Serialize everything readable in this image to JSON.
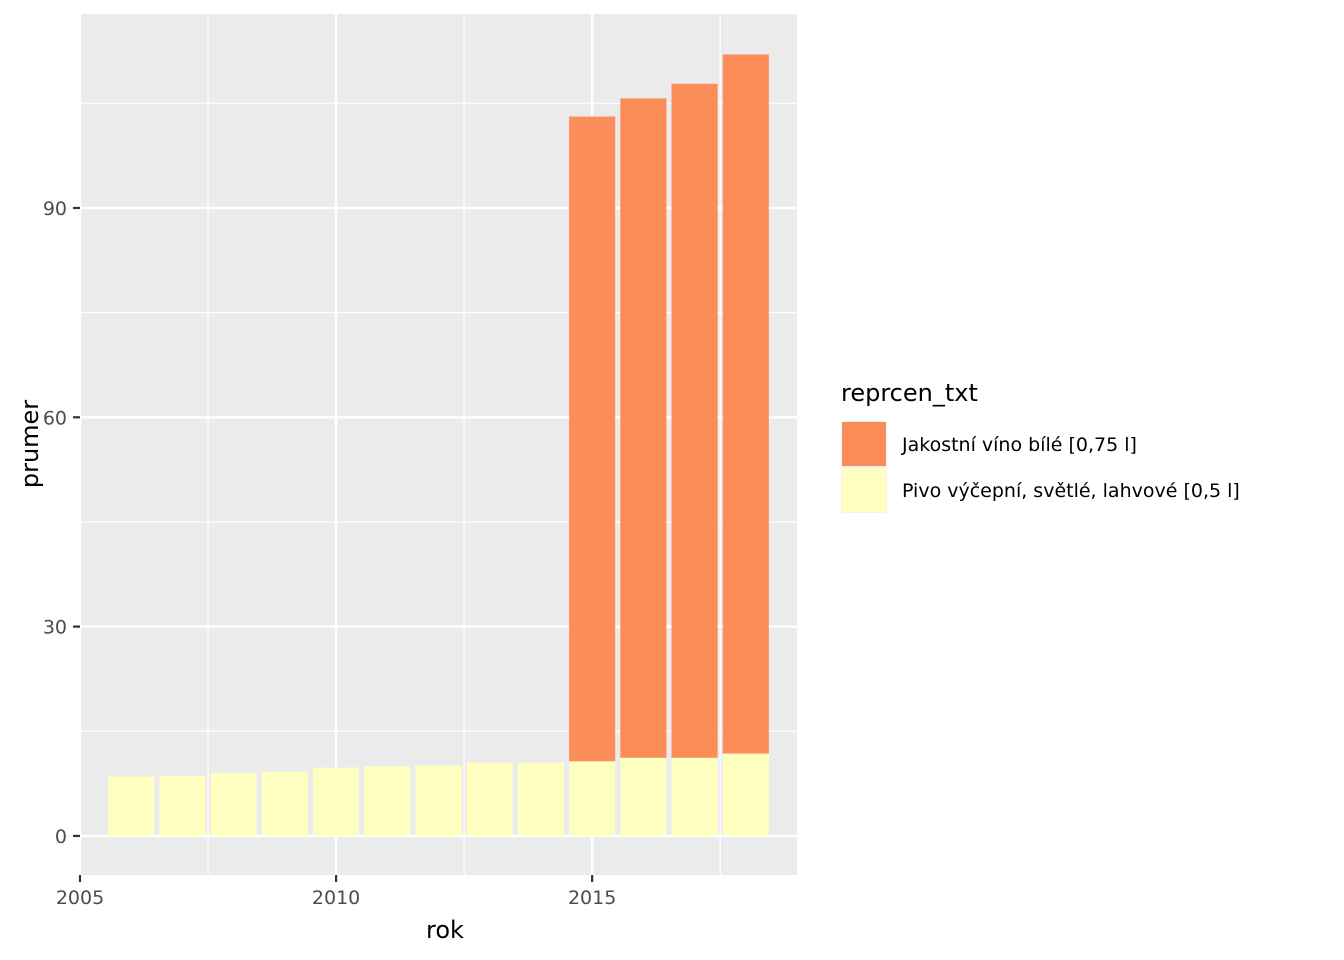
{
  "chart_data": {
    "type": "bar",
    "stacked": true,
    "x": [
      2006,
      2007,
      2008,
      2009,
      2010,
      2011,
      2012,
      2013,
      2014,
      2015,
      2016,
      2017,
      2018
    ],
    "series": [
      {
        "name": "Pivo výčepní, světlé, lahvové [0,5 l]",
        "color": "#FFFFBF",
        "values": [
          8.5,
          8.6,
          9.0,
          9.2,
          9.8,
          10.0,
          10.1,
          10.5,
          10.5,
          10.7,
          11.2,
          11.2,
          11.8
        ]
      },
      {
        "name": "Jakostní víno bílé [0,75 l]",
        "color": "#FC8D59",
        "values": [
          null,
          null,
          null,
          null,
          null,
          null,
          null,
          null,
          null,
          92.4,
          94.5,
          96.6,
          100.2
        ]
      }
    ],
    "xlabel": "rok",
    "ylabel": "prumer",
    "xlim": [
      2005,
      2019
    ],
    "ylim": [
      -5.6,
      117.8
    ],
    "x_ticks": [
      2005,
      2010,
      2015
    ],
    "x_tick_labels": [
      "2005",
      "2010",
      "2015"
    ],
    "y_ticks": [
      0,
      30,
      60,
      90
    ],
    "y_tick_labels": [
      "0",
      "30",
      "60",
      "90"
    ],
    "legend": {
      "title": "reprcen_txt",
      "position": "right",
      "entries": [
        "Jakostní víno bílé [0,75 l]",
        "Pivo výčepní, světlé, lahvové [0,5 l]"
      ],
      "colors": [
        "#FC8D59",
        "#FFFFBF"
      ]
    },
    "grid": true,
    "panel_background": "#EBEBEB"
  }
}
